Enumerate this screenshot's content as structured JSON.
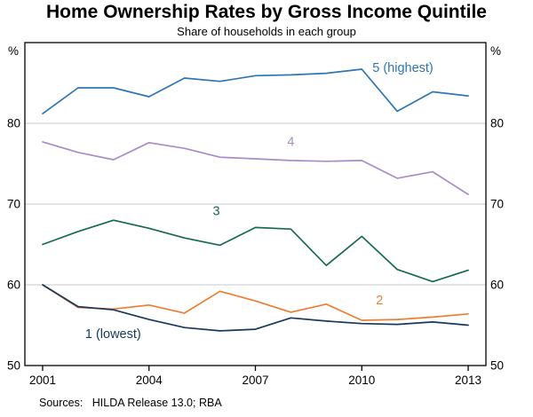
{
  "header": {
    "title": "Home Ownership Rates by Gross Income Quintile",
    "subtitle": "Share of households in each group"
  },
  "footer": {
    "sources": "Sources:   HILDA Release 13.0; RBA"
  },
  "chart_data": {
    "type": "line",
    "title": "Home Ownership Rates by Gross Income Quintile",
    "subtitle": "Share of households in each group",
    "y_unit_left": "%",
    "y_unit_right": "%",
    "xlim": [
      2000.5,
      2013.5
    ],
    "ylim": [
      50,
      90
    ],
    "xticks": [
      2001,
      2004,
      2007,
      2010,
      2013
    ],
    "yticks": [
      50,
      60,
      70,
      80
    ],
    "gridlines": [
      60,
      70,
      80
    ],
    "grid_color": "#c9c9c9",
    "axis_color": "#000000",
    "x": [
      2001,
      2002,
      2003,
      2004,
      2005,
      2006,
      2007,
      2008,
      2009,
      2010,
      2011,
      2012,
      2013
    ],
    "series": [
      {
        "name": "quintile-5",
        "label": "5 (highest)",
        "color": "#2e75b6",
        "values": [
          81.2,
          84.4,
          84.4,
          83.3,
          85.6,
          85.2,
          85.9,
          86.0,
          86.2,
          86.7,
          81.5,
          83.9,
          83.4
        ],
        "label_pos": {
          "x": 2010.3,
          "y": 86.4
        },
        "label_anchor": "start"
      },
      {
        "name": "quintile-4",
        "label": "4",
        "color": "#a78cc8",
        "values": [
          77.7,
          76.4,
          75.5,
          77.6,
          76.9,
          75.8,
          75.6,
          75.4,
          75.3,
          75.4,
          73.2,
          74.0,
          71.2
        ],
        "label_pos": {
          "x": 2008.0,
          "y": 77.2
        },
        "label_anchor": "middle"
      },
      {
        "name": "quintile-3",
        "label": "3",
        "color": "#156b4a",
        "values": [
          65.0,
          66.6,
          68.0,
          67.0,
          65.8,
          64.9,
          67.1,
          66.9,
          62.4,
          66.0,
          61.9,
          60.4,
          61.8
        ],
        "label_pos": {
          "x": 2005.9,
          "y": 68.6
        },
        "label_anchor": "middle"
      },
      {
        "name": "quintile-2",
        "label": "2",
        "color": "#ed7d31",
        "values": [
          60.0,
          57.2,
          57.0,
          57.5,
          56.5,
          59.2,
          58.0,
          56.6,
          57.6,
          55.6,
          55.7,
          56.0,
          56.4
        ],
        "label_pos": {
          "x": 2010.5,
          "y": 57.6
        },
        "label_anchor": "middle"
      },
      {
        "name": "quintile-1",
        "label": "1 (lowest)",
        "color": "#17375e",
        "values": [
          60.0,
          57.3,
          56.9,
          55.7,
          54.7,
          54.3,
          54.5,
          55.9,
          55.5,
          55.2,
          55.1,
          55.4,
          55.0
        ],
        "label_pos": {
          "x": 2002.2,
          "y": 53.4
        },
        "label_anchor": "start"
      }
    ]
  }
}
